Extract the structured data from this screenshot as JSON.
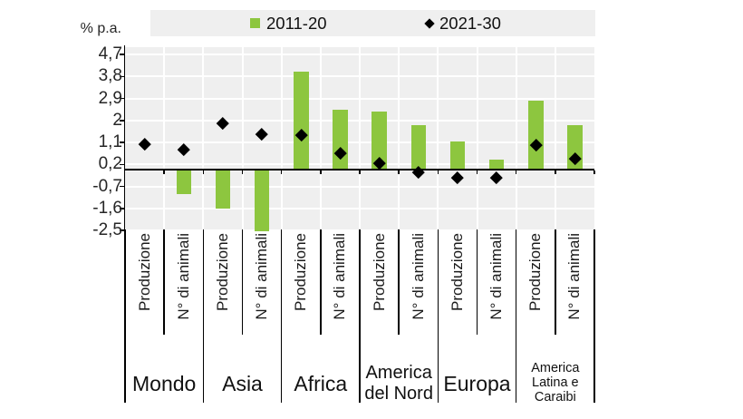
{
  "chart_data": {
    "type": "bar",
    "title": "",
    "ylabel": "% p.a.",
    "ylim": [
      -2.5,
      5.0
    ],
    "yticks": [
      4.7,
      3.8,
      2.9,
      2,
      1.1,
      0.2,
      -0.7,
      -1.6,
      -2.5
    ],
    "ytick_labels": [
      "4,7",
      "3,8",
      "2,9",
      "2",
      "1,1",
      "0,2",
      "-0,7",
      "-1,6",
      "-2,5"
    ],
    "grid": true,
    "plot_bg_color": "#efefef",
    "grid_color": "#ffffff",
    "bar_color": "#8dc63f",
    "marker_color": "#000000",
    "legend": {
      "position": "top",
      "items": [
        {
          "label": "2011-20",
          "series": "bar",
          "color": "#8dc63f"
        },
        {
          "label": "2021-30",
          "series": "diamond",
          "color": "#000000"
        }
      ]
    },
    "series_names": [
      "2011-20",
      "2021-30"
    ],
    "column_labels": [
      "Produzione",
      "N° di animali"
    ],
    "groups": [
      {
        "name": "Mondo",
        "columns": [
          {
            "label": "Produzione",
            "bar_2011_20": 0.0,
            "diamond_2021_30": 1.05
          },
          {
            "label": "N° di animali",
            "bar_2011_20": -1.0,
            "diamond_2021_30": 0.8
          }
        ]
      },
      {
        "name": "Asia",
        "columns": [
          {
            "label": "Produzione",
            "bar_2011_20": -1.6,
            "diamond_2021_30": 1.9
          },
          {
            "label": "N° di animali",
            "bar_2011_20": -2.55,
            "diamond_2021_30": 1.45,
            "bar_clipped_at_axis_min": true
          }
        ]
      },
      {
        "name": "Africa",
        "columns": [
          {
            "label": "Produzione",
            "bar_2011_20": 4.0,
            "diamond_2021_30": 1.4
          },
          {
            "label": "N° di animali",
            "bar_2011_20": 2.45,
            "diamond_2021_30": 0.65
          }
        ]
      },
      {
        "name": "America del Nord",
        "columns": [
          {
            "label": "Produzione",
            "bar_2011_20": 2.35,
            "diamond_2021_30": 0.25
          },
          {
            "label": "N° di animali",
            "bar_2011_20": 1.8,
            "diamond_2021_30": -0.1
          }
        ]
      },
      {
        "name": "Europa",
        "columns": [
          {
            "label": "Produzione",
            "bar_2011_20": 1.15,
            "diamond_2021_30": -0.35
          },
          {
            "label": "N° di animali",
            "bar_2011_20": 0.4,
            "diamond_2021_30": -0.35
          }
        ]
      },
      {
        "name": "America Latina e Caraibi",
        "columns": [
          {
            "label": "Produzione",
            "bar_2011_20": 2.8,
            "diamond_2021_30": 1.0
          },
          {
            "label": "N° di animali",
            "bar_2011_20": 1.8,
            "diamond_2021_30": 0.45
          }
        ]
      }
    ]
  }
}
